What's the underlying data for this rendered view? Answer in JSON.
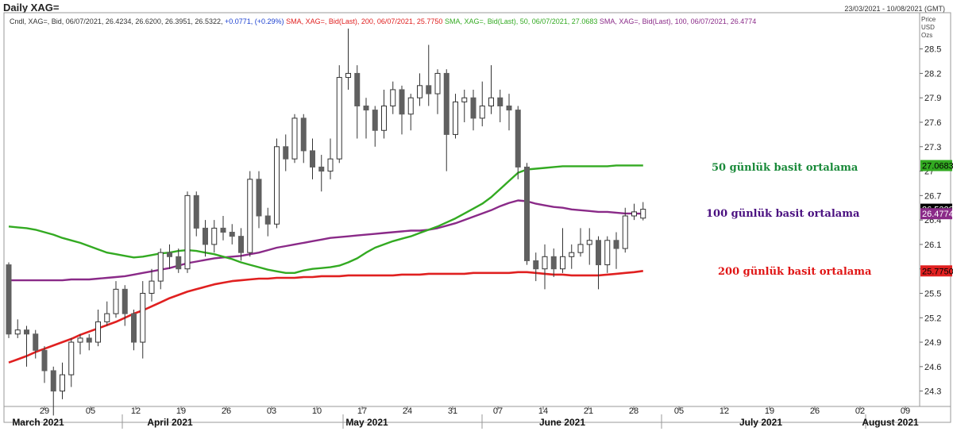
{
  "header": {
    "title": "Daily XAG=",
    "date_range": "23/03/2021 - 10/08/2021 (GMT)"
  },
  "legend": {
    "candle_prefix": "Cndl, XAG=, Bid, 06/07/2021, 26.4234, 26.6200, 26.3951, 26.5322,",
    "candle_change": "+0.0771, (+0.29%)",
    "sma200": "SMA, XAG=, Bid(Last), 200, 06/07/2021, 25.7750",
    "sma50": "SMA, XAG=, Bid(Last), 50, 06/07/2021, 27.0683",
    "sma100": "SMA, XAG=, Bid(Last), 100, 06/07/2021, 26.4774"
  },
  "price_header": [
    "Price",
    "USD",
    "Ozs"
  ],
  "annotations": {
    "sma50": "50 günlük basit ortalama",
    "sma100": "100 günlük basit ortalama",
    "sma200": "200 günlük basit ortalama"
  },
  "colors": {
    "sma50": "#33aa22",
    "sma100": "#8a2a88",
    "sma200": "#e02020",
    "ann50": "#1a8a3a",
    "ann100": "#4a1080",
    "ann200": "#e01515",
    "up_candle": "#ffffff",
    "down_candle": "#606060"
  },
  "chart_data": {
    "type": "candlestick",
    "y_axis": {
      "ylim": [
        24.15,
        28.75
      ],
      "ticks": [
        "28.5",
        "28.2",
        "27.9",
        "27.6",
        "27.3",
        "27",
        "26.7",
        "26.4",
        "26.1",
        "25.8",
        "25.5",
        "25.2",
        "24.9",
        "24.6",
        "24.3"
      ]
    },
    "x_axis": {
      "day_ticks": [
        "29",
        "05",
        "12",
        "19",
        "26",
        "03",
        "10",
        "17",
        "24",
        "31",
        "07",
        "14",
        "21",
        "28",
        "05",
        "12",
        "19",
        "26",
        "02",
        "09"
      ],
      "month_labels": [
        "March 2021",
        "April 2021",
        "May 2021",
        "June 2021",
        "July 2021",
        "August 2021"
      ]
    },
    "last_values": {
      "close": "26.5322",
      "sma50": "27.0683",
      "sma100": "26.4774",
      "sma200": "25.7750"
    },
    "candles": [
      [
        25.85,
        25.0,
        25.88,
        24.95
      ],
      [
        25.0,
        25.05,
        25.18,
        24.95
      ],
      [
        25.05,
        25.0,
        25.1,
        24.6
      ],
      [
        25.0,
        24.8,
        25.05,
        24.7
      ],
      [
        24.8,
        24.55,
        24.85,
        24.4
      ],
      [
        24.55,
        24.3,
        24.6,
        24.0
      ],
      [
        24.3,
        24.5,
        24.65,
        24.2
      ],
      [
        24.5,
        24.9,
        24.95,
        24.35
      ],
      [
        24.9,
        24.95,
        25.0,
        24.75
      ],
      [
        24.95,
        24.9,
        25.0,
        24.8
      ],
      [
        24.9,
        25.15,
        25.3,
        24.85
      ],
      [
        25.15,
        25.25,
        25.4,
        25.1
      ],
      [
        25.25,
        25.55,
        25.65,
        25.2
      ],
      [
        25.55,
        25.25,
        25.6,
        25.1
      ],
      [
        25.25,
        24.9,
        25.3,
        24.8
      ],
      [
        24.9,
        25.5,
        25.65,
        24.7
      ],
      [
        25.5,
        25.65,
        25.8,
        25.4
      ],
      [
        25.65,
        26.0,
        26.05,
        25.55
      ],
      [
        26.0,
        25.95,
        26.1,
        25.8
      ],
      [
        25.95,
        25.8,
        26.05,
        25.75
      ],
      [
        25.8,
        26.7,
        26.75,
        25.75
      ],
      [
        26.7,
        26.3,
        26.75,
        26.2
      ],
      [
        26.3,
        26.1,
        26.4,
        25.95
      ],
      [
        26.1,
        26.3,
        26.4,
        26.0
      ],
      [
        26.3,
        26.25,
        26.45,
        26.15
      ],
      [
        26.25,
        26.2,
        26.35,
        26.1
      ],
      [
        26.2,
        26.0,
        26.3,
        25.9
      ],
      [
        26.0,
        26.9,
        27.0,
        25.95
      ],
      [
        26.9,
        26.45,
        27.0,
        26.3
      ],
      [
        26.45,
        26.35,
        26.55,
        26.2
      ],
      [
        26.35,
        27.3,
        27.4,
        26.3
      ],
      [
        27.3,
        27.15,
        27.45,
        27.0
      ],
      [
        27.15,
        27.65,
        27.7,
        27.1
      ],
      [
        27.65,
        27.25,
        27.7,
        27.1
      ],
      [
        27.25,
        27.05,
        27.4,
        26.9
      ],
      [
        27.05,
        27.0,
        27.2,
        26.75
      ],
      [
        27.0,
        27.15,
        27.4,
        26.9
      ],
      [
        27.15,
        28.15,
        28.3,
        27.1
      ],
      [
        28.15,
        28.2,
        28.75,
        28.0
      ],
      [
        28.2,
        27.8,
        28.3,
        27.4
      ],
      [
        27.8,
        27.75,
        27.9,
        27.4
      ],
      [
        27.75,
        27.5,
        27.8,
        27.3
      ],
      [
        27.5,
        27.8,
        28.0,
        27.4
      ],
      [
        27.8,
        28.0,
        28.1,
        27.7
      ],
      [
        28.0,
        27.7,
        28.05,
        27.45
      ],
      [
        27.7,
        27.9,
        27.95,
        27.5
      ],
      [
        27.9,
        28.05,
        28.2,
        27.8
      ],
      [
        28.05,
        27.95,
        28.55,
        27.8
      ],
      [
        27.95,
        28.2,
        28.25,
        27.7
      ],
      [
        28.2,
        27.45,
        28.25,
        27.0
      ],
      [
        27.45,
        27.85,
        27.95,
        27.4
      ],
      [
        27.85,
        27.9,
        28.0,
        27.6
      ],
      [
        27.9,
        27.65,
        28.0,
        27.5
      ],
      [
        27.65,
        27.8,
        28.1,
        27.55
      ],
      [
        27.8,
        27.9,
        28.3,
        27.7
      ],
      [
        27.9,
        27.8,
        28.0,
        27.6
      ],
      [
        27.8,
        27.75,
        27.95,
        27.5
      ],
      [
        27.75,
        27.05,
        27.8,
        26.9
      ],
      [
        27.05,
        25.9,
        27.1,
        25.85
      ],
      [
        25.9,
        25.8,
        26.0,
        25.65
      ],
      [
        25.8,
        25.95,
        26.1,
        25.55
      ],
      [
        25.95,
        25.8,
        26.05,
        25.7
      ],
      [
        25.8,
        25.95,
        26.3,
        25.75
      ],
      [
        25.95,
        26.0,
        26.1,
        25.8
      ],
      [
        26.0,
        26.1,
        26.3,
        25.95
      ],
      [
        26.1,
        26.15,
        26.3,
        25.85
      ],
      [
        26.15,
        25.85,
        26.2,
        25.55
      ],
      [
        25.85,
        26.15,
        26.2,
        25.75
      ],
      [
        26.15,
        26.05,
        26.25,
        25.8
      ],
      [
        26.05,
        26.45,
        26.55,
        26.0
      ],
      [
        26.45,
        26.5,
        26.6,
        26.4
      ],
      [
        26.4234,
        26.5322,
        26.62,
        26.3951
      ]
    ],
    "sma50": [
      26.32,
      26.31,
      26.3,
      26.28,
      26.25,
      26.22,
      26.18,
      26.15,
      26.12,
      26.08,
      26.04,
      26.0,
      25.98,
      25.96,
      25.94,
      25.95,
      25.97,
      25.99,
      26.0,
      26.02,
      26.03,
      26.02,
      26.0,
      25.98,
      25.95,
      25.92,
      25.88,
      25.85,
      25.82,
      25.79,
      25.77,
      25.75,
      25.75,
      25.78,
      25.8,
      25.81,
      25.82,
      25.84,
      25.88,
      25.93,
      26.0,
      26.06,
      26.1,
      26.14,
      26.17,
      26.2,
      26.24,
      26.28,
      26.32,
      26.37,
      26.42,
      26.48,
      26.54,
      26.6,
      26.68,
      26.78,
      26.88,
      26.98,
      27.02,
      27.03,
      27.04,
      27.05,
      27.06,
      27.06,
      27.06,
      27.06,
      27.06,
      27.06,
      27.07,
      27.07,
      27.07,
      27.07
    ],
    "sma100": [
      25.66,
      25.66,
      25.66,
      25.66,
      25.66,
      25.66,
      25.66,
      25.67,
      25.67,
      25.67,
      25.68,
      25.69,
      25.7,
      25.71,
      25.73,
      25.75,
      25.77,
      25.79,
      25.81,
      25.84,
      25.87,
      25.89,
      25.91,
      25.93,
      25.94,
      25.95,
      25.96,
      25.98,
      26.0,
      26.03,
      26.06,
      26.08,
      26.1,
      26.12,
      26.14,
      26.16,
      26.18,
      26.19,
      26.2,
      26.21,
      26.22,
      26.23,
      26.24,
      26.25,
      26.26,
      26.27,
      26.27,
      26.28,
      26.3,
      26.33,
      26.36,
      26.4,
      26.44,
      26.48,
      26.52,
      26.57,
      26.61,
      26.64,
      26.63,
      26.6,
      26.58,
      26.56,
      26.55,
      26.53,
      26.52,
      26.51,
      26.5,
      26.5,
      26.49,
      26.48,
      26.48,
      26.4774
    ],
    "sma200": [
      24.65,
      24.69,
      24.73,
      24.78,
      24.82,
      24.86,
      24.9,
      24.94,
      24.99,
      25.03,
      25.07,
      25.11,
      25.15,
      25.2,
      25.25,
      25.29,
      25.34,
      25.39,
      25.44,
      25.48,
      25.52,
      25.55,
      25.58,
      25.61,
      25.63,
      25.65,
      25.66,
      25.67,
      25.68,
      25.68,
      25.69,
      25.69,
      25.69,
      25.7,
      25.7,
      25.71,
      25.71,
      25.71,
      25.72,
      25.72,
      25.72,
      25.72,
      25.72,
      25.72,
      25.73,
      25.73,
      25.73,
      25.74,
      25.74,
      25.74,
      25.74,
      25.74,
      25.75,
      25.75,
      25.75,
      25.75,
      25.75,
      25.76,
      25.76,
      25.75,
      25.74,
      25.73,
      25.73,
      25.72,
      25.72,
      25.72,
      25.72,
      25.73,
      25.74,
      25.75,
      25.76,
      25.775
    ]
  }
}
